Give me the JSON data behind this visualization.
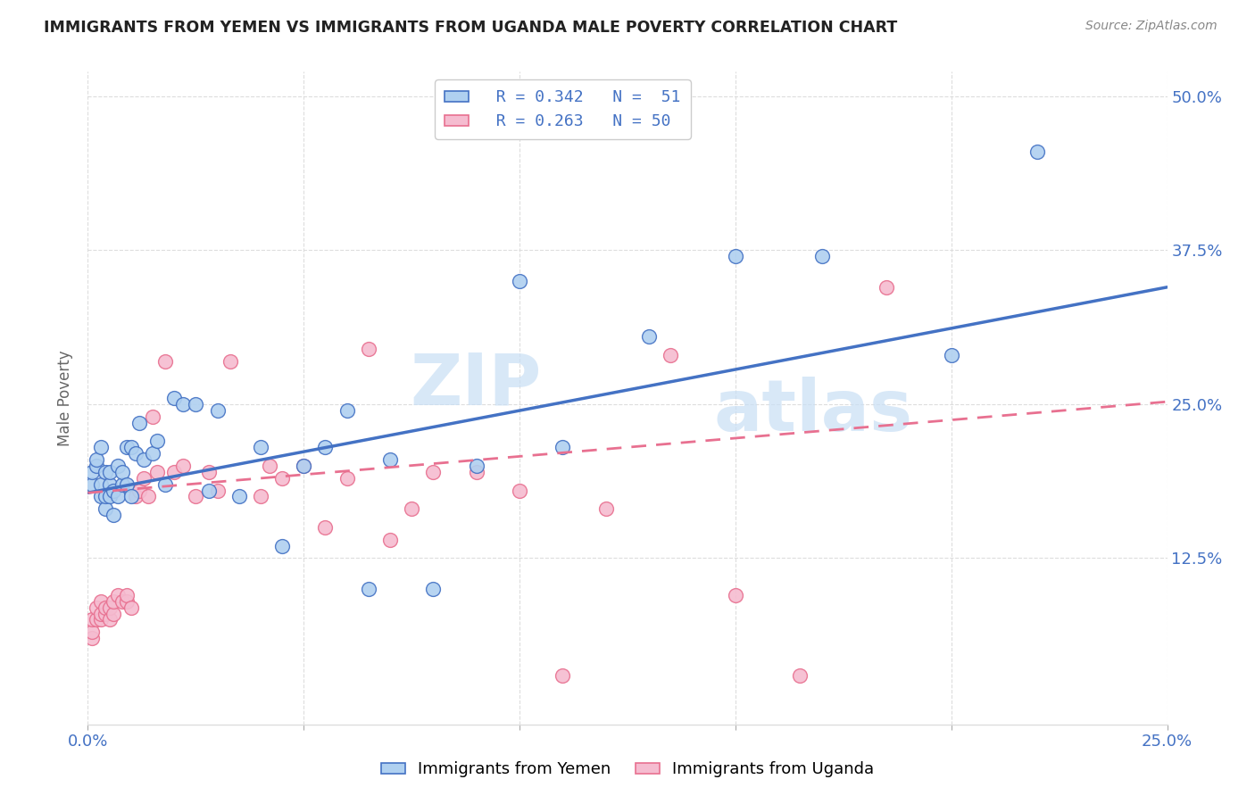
{
  "title": "IMMIGRANTS FROM YEMEN VS IMMIGRANTS FROM UGANDA MALE POVERTY CORRELATION CHART",
  "source": "Source: ZipAtlas.com",
  "ylabel_label": "Male Poverty",
  "legend_entries": [
    {
      "label": "Immigrants from Yemen",
      "R": "R = 0.342",
      "N": "N =  51",
      "color": "#afd0f0",
      "line_color": "#4472c4"
    },
    {
      "label": "Immigrants from Uganda",
      "R": "R = 0.263",
      "N": "N = 50",
      "color": "#f5bcd0",
      "line_color": "#e87090"
    }
  ],
  "watermark_zip": "ZIP",
  "watermark_atlas": "atlas",
  "title_color": "#222222",
  "axis_label_color": "#4472c4",
  "background_color": "#ffffff",
  "yemen_x": [
    0.001,
    0.001,
    0.002,
    0.002,
    0.003,
    0.003,
    0.003,
    0.004,
    0.004,
    0.004,
    0.005,
    0.005,
    0.005,
    0.006,
    0.006,
    0.007,
    0.007,
    0.008,
    0.008,
    0.009,
    0.009,
    0.01,
    0.01,
    0.011,
    0.012,
    0.013,
    0.015,
    0.016,
    0.018,
    0.02,
    0.022,
    0.025,
    0.028,
    0.03,
    0.035,
    0.04,
    0.045,
    0.05,
    0.055,
    0.06,
    0.065,
    0.07,
    0.08,
    0.09,
    0.1,
    0.11,
    0.13,
    0.15,
    0.17,
    0.2,
    0.22
  ],
  "yemen_y": [
    0.185,
    0.195,
    0.2,
    0.205,
    0.175,
    0.185,
    0.215,
    0.165,
    0.175,
    0.195,
    0.175,
    0.185,
    0.195,
    0.16,
    0.18,
    0.175,
    0.2,
    0.185,
    0.195,
    0.185,
    0.215,
    0.175,
    0.215,
    0.21,
    0.235,
    0.205,
    0.21,
    0.22,
    0.185,
    0.255,
    0.25,
    0.25,
    0.18,
    0.245,
    0.175,
    0.215,
    0.135,
    0.2,
    0.215,
    0.245,
    0.1,
    0.205,
    0.1,
    0.2,
    0.35,
    0.215,
    0.305,
    0.37,
    0.37,
    0.29,
    0.455
  ],
  "uganda_x": [
    0.001,
    0.001,
    0.001,
    0.002,
    0.002,
    0.003,
    0.003,
    0.003,
    0.004,
    0.004,
    0.005,
    0.005,
    0.006,
    0.006,
    0.007,
    0.008,
    0.009,
    0.009,
    0.01,
    0.011,
    0.012,
    0.013,
    0.014,
    0.015,
    0.016,
    0.018,
    0.02,
    0.022,
    0.025,
    0.028,
    0.03,
    0.033,
    0.04,
    0.042,
    0.045,
    0.05,
    0.055,
    0.06,
    0.065,
    0.07,
    0.075,
    0.08,
    0.09,
    0.1,
    0.11,
    0.12,
    0.135,
    0.15,
    0.165,
    0.185
  ],
  "uganda_y": [
    0.06,
    0.065,
    0.075,
    0.075,
    0.085,
    0.075,
    0.08,
    0.09,
    0.08,
    0.085,
    0.075,
    0.085,
    0.08,
    0.09,
    0.095,
    0.09,
    0.09,
    0.095,
    0.085,
    0.175,
    0.18,
    0.19,
    0.175,
    0.24,
    0.195,
    0.285,
    0.195,
    0.2,
    0.175,
    0.195,
    0.18,
    0.285,
    0.175,
    0.2,
    0.19,
    0.2,
    0.15,
    0.19,
    0.295,
    0.14,
    0.165,
    0.195,
    0.195,
    0.18,
    0.03,
    0.165,
    0.29,
    0.095,
    0.03,
    0.345
  ],
  "xlim": [
    0.0,
    0.25
  ],
  "ylim": [
    -0.01,
    0.52
  ],
  "x_ticks": [
    0.0,
    0.05,
    0.1,
    0.15,
    0.2,
    0.25
  ],
  "y_ticks": [
    0.125,
    0.25,
    0.375,
    0.5
  ],
  "grid_color": "#dddddd",
  "yemen_reg": [
    0.178,
    0.345
  ],
  "uganda_reg": [
    0.178,
    0.252
  ]
}
